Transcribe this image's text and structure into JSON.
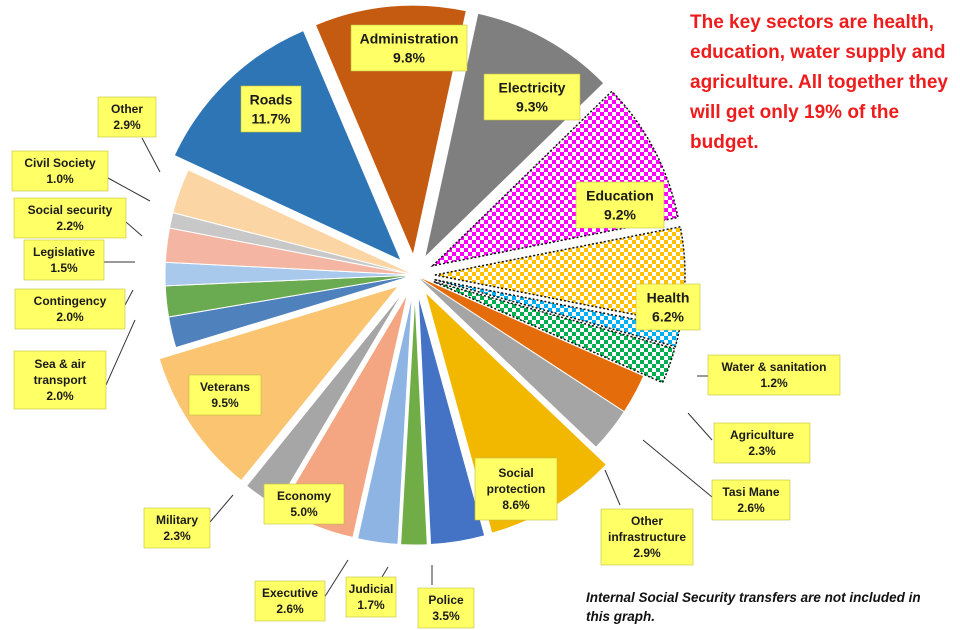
{
  "headline": "The key sectors are health, education, water supply and agriculture. All together they will get only 19% of the budget.",
  "footnote": "Internal Social Security transfers are not included in this graph.",
  "chart_data": {
    "type": "pie",
    "title": "",
    "unit": "%",
    "slices": [
      {
        "name": "Administration",
        "value": 9.8,
        "label": "9.8%",
        "color": "#c55a11",
        "pattern": "solid",
        "exploded": true,
        "highlight": false
      },
      {
        "name": "Electricity",
        "value": 9.3,
        "label": "9.3%",
        "color": "#7f7f7f",
        "pattern": "solid",
        "exploded": true,
        "highlight": false
      },
      {
        "name": "Education",
        "value": 9.2,
        "label": "9.2%",
        "color": "#ff00ff",
        "pattern": "checker",
        "exploded": true,
        "highlight": true
      },
      {
        "name": "Health",
        "value": 6.2,
        "label": "6.2%",
        "color": "#ffc000",
        "pattern": "checker",
        "exploded": true,
        "highlight": true
      },
      {
        "name": "Water & sanitation",
        "value": 1.2,
        "label": "1.2%",
        "color": "#00b0f0",
        "pattern": "checker",
        "exploded": true,
        "highlight": true
      },
      {
        "name": "Agriculture",
        "value": 2.3,
        "label": "2.3%",
        "color": "#00b050",
        "pattern": "checker",
        "exploded": true,
        "highlight": true
      },
      {
        "name": "Tasi Mane",
        "value": 2.6,
        "label": "2.6%",
        "color": "#e46c0a",
        "pattern": "solid",
        "exploded": false,
        "highlight": false
      },
      {
        "name": "Other infrastructure",
        "value": 2.9,
        "label": "2.9%",
        "color": "#a5a5a5",
        "pattern": "solid",
        "exploded": false,
        "highlight": false
      },
      {
        "name": "Social protection",
        "value": 8.6,
        "label": "8.6%",
        "color": "#f2b800",
        "pattern": "solid",
        "exploded": true,
        "highlight": false
      },
      {
        "name": "Police",
        "value": 3.5,
        "label": "3.5%",
        "color": "#4472c4",
        "pattern": "solid",
        "exploded": true,
        "highlight": false
      },
      {
        "name": "Judicial",
        "value": 1.7,
        "label": "1.7%",
        "color": "#70ad47",
        "pattern": "solid",
        "exploded": true,
        "highlight": false
      },
      {
        "name": "Executive",
        "value": 2.6,
        "label": "2.6%",
        "color": "#8db4e2",
        "pattern": "solid",
        "exploded": true,
        "highlight": false
      },
      {
        "name": "Economy",
        "value": 5.0,
        "label": "5.0%",
        "color": "#f4a582",
        "pattern": "solid",
        "exploded": true,
        "highlight": false
      },
      {
        "name": "Military",
        "value": 2.3,
        "label": "2.3%",
        "color": "#a6a6a6",
        "pattern": "solid",
        "exploded": true,
        "highlight": false
      },
      {
        "name": "Veterans",
        "value": 9.5,
        "label": "9.5%",
        "color": "#fac471",
        "pattern": "solid",
        "exploded": true,
        "highlight": false
      },
      {
        "name": "Sea & air transport",
        "value": 2.0,
        "label": "2.0%",
        "color": "#4f81bd",
        "pattern": "solid",
        "exploded": false,
        "highlight": false
      },
      {
        "name": "Contingency",
        "value": 2.0,
        "label": "2.0%",
        "color": "#6aaa50",
        "pattern": "solid",
        "exploded": false,
        "highlight": false
      },
      {
        "name": "Legislative",
        "value": 1.5,
        "label": "1.5%",
        "color": "#a9c9ec",
        "pattern": "solid",
        "exploded": false,
        "highlight": false
      },
      {
        "name": "Social security",
        "value": 2.2,
        "label": "2.2%",
        "color": "#f4b6a3",
        "pattern": "solid",
        "exploded": false,
        "highlight": false
      },
      {
        "name": "Civil Society",
        "value": 1.0,
        "label": "1.0%",
        "color": "#c8c8c8",
        "pattern": "solid",
        "exploded": false,
        "highlight": false
      },
      {
        "name": "Other",
        "value": 2.9,
        "label": "2.9%",
        "color": "#fcd5a4",
        "pattern": "solid",
        "exploded": false,
        "highlight": false
      },
      {
        "name": "Roads",
        "value": 11.7,
        "label": "11.7%",
        "color": "#2e75b6",
        "pattern": "solid",
        "exploded": true,
        "highlight": false
      }
    ],
    "label_style": {
      "fill": "#ffff66",
      "border": "#bfbf3f"
    }
  }
}
